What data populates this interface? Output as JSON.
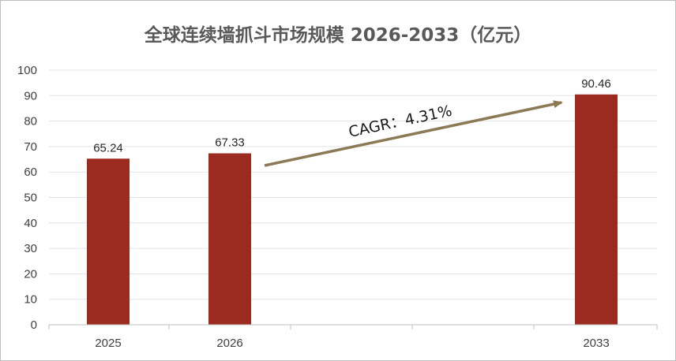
{
  "chart_data": {
    "type": "bar",
    "title": "全球连续墙抓斗市场规模 2026-2033（亿元）",
    "categories": [
      "2025",
      "2026",
      "2033"
    ],
    "values": [
      65.24,
      67.33,
      90.46
    ],
    "data_labels": [
      "65.24",
      "67.33",
      "90.46"
    ],
    "ylim": [
      0,
      100
    ],
    "yticks": [
      0,
      10,
      20,
      30,
      40,
      50,
      60,
      70,
      80,
      90,
      100
    ],
    "grid": true,
    "legend": "none",
    "bar_color": "#9b2b1f",
    "annotation": {
      "text": "CAGR：4.31%",
      "from_category": "2026",
      "to_category": "2033",
      "arrow_color": "#8b7a55"
    }
  }
}
